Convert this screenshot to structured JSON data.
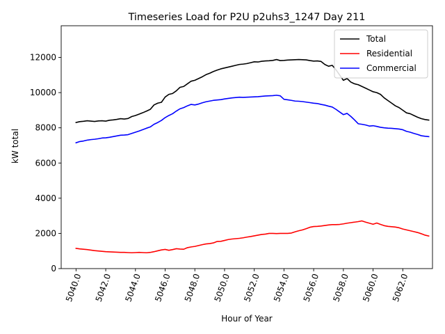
{
  "chart_data": {
    "type": "line",
    "title": "Timeseries Load for P2U p2uhs3_1247  Day 211",
    "xlabel": "Hour of Year",
    "ylabel": "kW total",
    "xlim": [
      5039.0,
      5064.0
    ],
    "ylim": [
      0,
      13800
    ],
    "x_ticks": [
      5040,
      5042,
      5044,
      5046,
      5048,
      5050,
      5052,
      5054,
      5056,
      5058,
      5060,
      5062
    ],
    "x_tick_labels": [
      "5040.0",
      "5042.0",
      "5044.0",
      "5046.0",
      "5048.0",
      "5050.0",
      "5052.0",
      "5054.0",
      "5056.0",
      "5058.0",
      "5060.0",
      "5062.0"
    ],
    "y_ticks": [
      0,
      2000,
      4000,
      6000,
      8000,
      10000,
      12000
    ],
    "y_tick_labels": [
      "0",
      "2000",
      "4000",
      "6000",
      "8000",
      "10000",
      "12000"
    ],
    "grid": false,
    "legend_position": "top-right",
    "x_start": 5040.0,
    "x_step": 0.25,
    "series": [
      {
        "name": "Total",
        "color": "#000000",
        "values": [
          8300,
          8350,
          8370,
          8400,
          8380,
          8360,
          8390,
          8400,
          8380,
          8430,
          8450,
          8480,
          8520,
          8500,
          8530,
          8640,
          8700,
          8780,
          8860,
          8950,
          9050,
          9300,
          9400,
          9450,
          9750,
          9900,
          9950,
          10100,
          10300,
          10350,
          10500,
          10650,
          10700,
          10800,
          10900,
          11020,
          11100,
          11200,
          11280,
          11350,
          11400,
          11450,
          11500,
          11550,
          11600,
          11620,
          11650,
          11700,
          11750,
          11740,
          11780,
          11800,
          11810,
          11830,
          11880,
          11820,
          11830,
          11850,
          11860,
          11870,
          11880,
          11870,
          11860,
          11820,
          11790,
          11800,
          11770,
          11600,
          11500,
          11550,
          11300,
          11000,
          10700,
          10800,
          10600,
          10500,
          10450,
          10350,
          10250,
          10150,
          10050,
          10000,
          9900,
          9700,
          9550,
          9400,
          9250,
          9150,
          9000,
          8850,
          8800,
          8700,
          8600,
          8520,
          8470,
          8440
        ]
      },
      {
        "name": "Residential",
        "color": "#ff0000",
        "values": [
          1150,
          1120,
          1100,
          1080,
          1050,
          1020,
          1000,
          980,
          960,
          950,
          940,
          930,
          920,
          920,
          910,
          900,
          910,
          920,
          910,
          900,
          920,
          960,
          1010,
          1060,
          1090,
          1040,
          1080,
          1130,
          1110,
          1100,
          1190,
          1230,
          1260,
          1310,
          1360,
          1400,
          1420,
          1460,
          1540,
          1550,
          1600,
          1650,
          1680,
          1700,
          1720,
          1750,
          1790,
          1820,
          1860,
          1900,
          1940,
          1960,
          2000,
          2000,
          1990,
          2000,
          2000,
          2000,
          2020,
          2090,
          2150,
          2200,
          2270,
          2350,
          2390,
          2400,
          2420,
          2450,
          2480,
          2500,
          2500,
          2510,
          2540,
          2580,
          2610,
          2640,
          2670,
          2710,
          2640,
          2580,
          2520,
          2590,
          2510,
          2440,
          2400,
          2380,
          2360,
          2320,
          2250,
          2200,
          2150,
          2100,
          2050,
          1980,
          1900,
          1850
        ]
      },
      {
        "name": "Commercial",
        "color": "#0000ff",
        "values": [
          7150,
          7220,
          7250,
          7300,
          7330,
          7350,
          7380,
          7420,
          7430,
          7460,
          7500,
          7540,
          7580,
          7590,
          7610,
          7680,
          7750,
          7820,
          7900,
          7980,
          8050,
          8200,
          8300,
          8420,
          8580,
          8700,
          8800,
          8950,
          9080,
          9150,
          9250,
          9330,
          9300,
          9350,
          9420,
          9480,
          9520,
          9560,
          9580,
          9600,
          9640,
          9670,
          9700,
          9720,
          9740,
          9730,
          9740,
          9750,
          9760,
          9770,
          9790,
          9810,
          9820,
          9830,
          9850,
          9820,
          9620,
          9590,
          9560,
          9520,
          9510,
          9490,
          9460,
          9430,
          9400,
          9380,
          9330,
          9290,
          9230,
          9180,
          9050,
          8900,
          8750,
          8820,
          8650,
          8450,
          8230,
          8200,
          8160,
          8100,
          8120,
          8080,
          8030,
          8000,
          7980,
          7970,
          7950,
          7930,
          7890,
          7800,
          7750,
          7680,
          7620,
          7550,
          7520,
          7500
        ]
      }
    ]
  }
}
